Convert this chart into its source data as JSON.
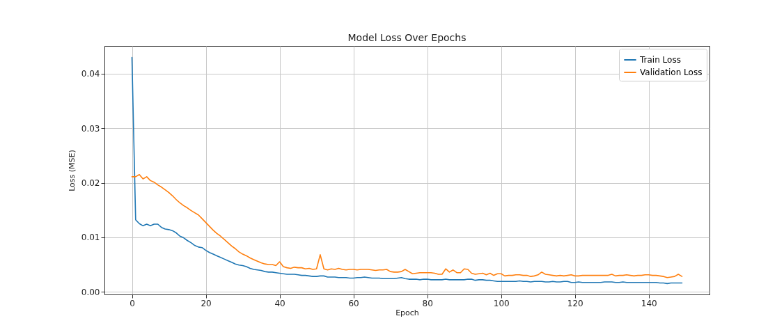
{
  "chart_data": {
    "type": "line",
    "title": "Model Loss Over Epochs",
    "xlabel": "Epoch",
    "ylabel": "Loss (MSE)",
    "x": [
      0,
      1,
      2,
      3,
      4,
      5,
      6,
      7,
      8,
      9,
      10,
      11,
      12,
      13,
      14,
      15,
      16,
      17,
      18,
      19,
      20,
      21,
      22,
      23,
      24,
      25,
      26,
      27,
      28,
      29,
      30,
      31,
      32,
      33,
      34,
      35,
      36,
      37,
      38,
      39,
      40,
      41,
      42,
      43,
      44,
      45,
      46,
      47,
      48,
      49,
      50,
      51,
      52,
      53,
      54,
      55,
      56,
      57,
      58,
      59,
      60,
      61,
      62,
      63,
      64,
      65,
      66,
      67,
      68,
      69,
      70,
      71,
      72,
      73,
      74,
      75,
      76,
      77,
      78,
      79,
      80,
      81,
      82,
      83,
      84,
      85,
      86,
      87,
      88,
      89,
      90,
      91,
      92,
      93,
      94,
      95,
      96,
      97,
      98,
      99,
      100,
      101,
      102,
      103,
      104,
      105,
      106,
      107,
      108,
      109,
      110,
      111,
      112,
      113,
      114,
      115,
      116,
      117,
      118,
      119,
      120,
      121,
      122,
      123,
      124,
      125,
      126,
      127,
      128,
      129,
      130,
      131,
      132,
      133,
      134,
      135,
      136,
      137,
      138,
      139,
      140,
      141,
      142,
      143,
      144,
      145,
      146,
      147,
      148,
      149
    ],
    "series": [
      {
        "name": "Train Loss",
        "color": "#1f77b4",
        "values": [
          0.043,
          0.0132,
          0.0125,
          0.0121,
          0.0124,
          0.0121,
          0.0124,
          0.0124,
          0.0118,
          0.0115,
          0.0114,
          0.0112,
          0.0108,
          0.0102,
          0.0099,
          0.0094,
          0.009,
          0.0085,
          0.0082,
          0.0081,
          0.0076,
          0.0072,
          0.0069,
          0.0066,
          0.0063,
          0.006,
          0.0057,
          0.0054,
          0.0051,
          0.0049,
          0.0048,
          0.0046,
          0.0043,
          0.0041,
          0.004,
          0.0039,
          0.0037,
          0.0036,
          0.0036,
          0.0035,
          0.0034,
          0.0033,
          0.0032,
          0.0032,
          0.0032,
          0.0031,
          0.003,
          0.003,
          0.0029,
          0.0028,
          0.0028,
          0.0029,
          0.0029,
          0.0027,
          0.0027,
          0.0027,
          0.0026,
          0.0026,
          0.0026,
          0.0025,
          0.0025,
          0.0026,
          0.0026,
          0.0027,
          0.0026,
          0.0025,
          0.0025,
          0.0025,
          0.0024,
          0.0024,
          0.0024,
          0.0024,
          0.0025,
          0.0026,
          0.0024,
          0.0023,
          0.0023,
          0.0023,
          0.0022,
          0.0023,
          0.0023,
          0.0022,
          0.0022,
          0.0022,
          0.0022,
          0.0023,
          0.0022,
          0.0022,
          0.0022,
          0.0022,
          0.0022,
          0.0023,
          0.0023,
          0.0021,
          0.0022,
          0.0022,
          0.0021,
          0.0021,
          0.002,
          0.0019,
          0.0019,
          0.0019,
          0.0019,
          0.0019,
          0.0019,
          0.002,
          0.0019,
          0.0019,
          0.0018,
          0.0019,
          0.0019,
          0.0019,
          0.0018,
          0.0018,
          0.0019,
          0.0018,
          0.0018,
          0.0019,
          0.0019,
          0.0017,
          0.0017,
          0.0018,
          0.0017,
          0.0017,
          0.0017,
          0.0017,
          0.0017,
          0.0017,
          0.0018,
          0.0018,
          0.0018,
          0.0017,
          0.0017,
          0.0018,
          0.0017,
          0.0017,
          0.0017,
          0.0017,
          0.0017,
          0.0017,
          0.0017,
          0.0017,
          0.0017,
          0.0016,
          0.0016,
          0.0015,
          0.0016,
          0.0016,
          0.0016,
          0.0016
        ]
      },
      {
        "name": "Validation Loss",
        "color": "#ff7f0e",
        "values": [
          0.0211,
          0.0211,
          0.0215,
          0.0207,
          0.0211,
          0.0204,
          0.0201,
          0.0196,
          0.0192,
          0.0187,
          0.0182,
          0.0176,
          0.0169,
          0.0163,
          0.0158,
          0.0154,
          0.0149,
          0.0145,
          0.0141,
          0.0134,
          0.0127,
          0.012,
          0.0113,
          0.0107,
          0.0102,
          0.0096,
          0.009,
          0.0084,
          0.0079,
          0.0073,
          0.0069,
          0.0066,
          0.0062,
          0.0059,
          0.0056,
          0.0053,
          0.0051,
          0.005,
          0.005,
          0.0048,
          0.0055,
          0.0046,
          0.0044,
          0.0043,
          0.0045,
          0.0044,
          0.0044,
          0.0042,
          0.0043,
          0.0041,
          0.0042,
          0.0068,
          0.0042,
          0.004,
          0.0042,
          0.0041,
          0.0043,
          0.0041,
          0.004,
          0.0041,
          0.0041,
          0.004,
          0.0041,
          0.0041,
          0.0041,
          0.004,
          0.0039,
          0.004,
          0.004,
          0.0041,
          0.0037,
          0.0036,
          0.0036,
          0.0037,
          0.0041,
          0.0037,
          0.0033,
          0.0034,
          0.0035,
          0.0035,
          0.0035,
          0.0035,
          0.0034,
          0.0032,
          0.0032,
          0.0042,
          0.0036,
          0.004,
          0.0035,
          0.0035,
          0.0042,
          0.0041,
          0.0034,
          0.0032,
          0.0033,
          0.0034,
          0.0031,
          0.0034,
          0.003,
          0.0033,
          0.0033,
          0.0029,
          0.003,
          0.003,
          0.0031,
          0.0031,
          0.003,
          0.003,
          0.0028,
          0.0029,
          0.0031,
          0.0036,
          0.0032,
          0.0031,
          0.003,
          0.0029,
          0.003,
          0.0029,
          0.003,
          0.0031,
          0.0029,
          0.0029,
          0.003,
          0.003,
          0.003,
          0.003,
          0.003,
          0.003,
          0.003,
          0.003,
          0.0032,
          0.0029,
          0.003,
          0.003,
          0.0031,
          0.003,
          0.0029,
          0.003,
          0.003,
          0.0031,
          0.0031,
          0.003,
          0.003,
          0.0029,
          0.0028,
          0.0026,
          0.0027,
          0.0028,
          0.0032,
          0.0028
        ]
      }
    ],
    "xlim": [
      -7.45,
      156.45
    ],
    "xticks": [
      0,
      20,
      40,
      60,
      80,
      100,
      120,
      140
    ],
    "ylim": [
      -0.0005,
      0.0451
    ],
    "yticks": [
      {
        "value": 0,
        "label": "0.00"
      },
      {
        "value": 0.01,
        "label": "0.01"
      },
      {
        "value": 0.02,
        "label": "0.02"
      },
      {
        "value": 0.03,
        "label": "0.03"
      },
      {
        "value": 0.04,
        "label": "0.04"
      }
    ],
    "grid": true,
    "legend": "top right",
    "marker": "none",
    "line_style": "solid"
  }
}
